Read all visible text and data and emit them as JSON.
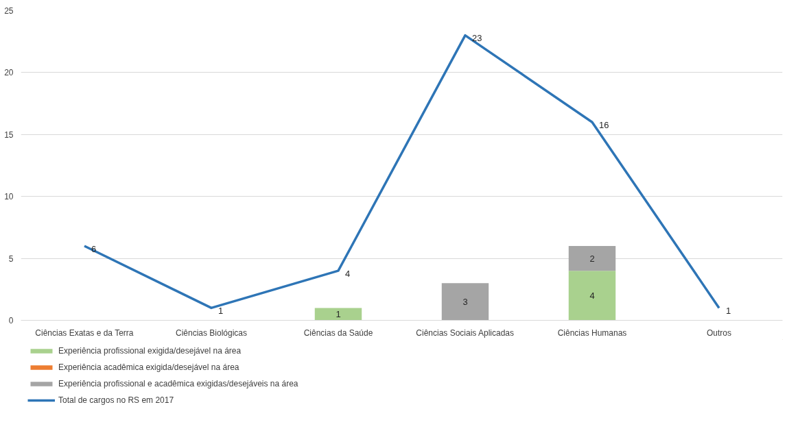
{
  "chart_data": {
    "type": "bar",
    "stacked": true,
    "categories": [
      "Ciências Exatas e da Terra",
      "Ciências Biológicas",
      "Ciências da Saúde",
      "Ciências Sociais Aplicadas",
      "Ciências Humanas",
      "Outros"
    ],
    "series": [
      {
        "name": "Experiência profissional exigida/desejável na área",
        "color": "#a9d18e",
        "values": [
          null,
          null,
          1,
          null,
          4,
          null
        ]
      },
      {
        "name": "Experiência acadêmica exigida/desejável na área",
        "color": "#ed7d31",
        "values": [
          null,
          null,
          null,
          null,
          null,
          null
        ]
      },
      {
        "name": "Experiência profissional e acadêmica exigidas/desejáveis na área",
        "color": "#a5a5a5",
        "values": [
          null,
          null,
          null,
          3,
          2,
          null
        ]
      },
      {
        "name": "Total de cargos no RS em 2017",
        "type": "line",
        "color": "#2e75b6",
        "values": [
          6,
          1,
          4,
          23,
          16,
          1
        ]
      }
    ],
    "ylim": [
      0,
      25
    ],
    "yticks": [
      0,
      5,
      10,
      15,
      20,
      25
    ],
    "grid": "y",
    "legend": "bottom",
    "data_labels": true,
    "line_style": "solid",
    "marker": "none"
  }
}
